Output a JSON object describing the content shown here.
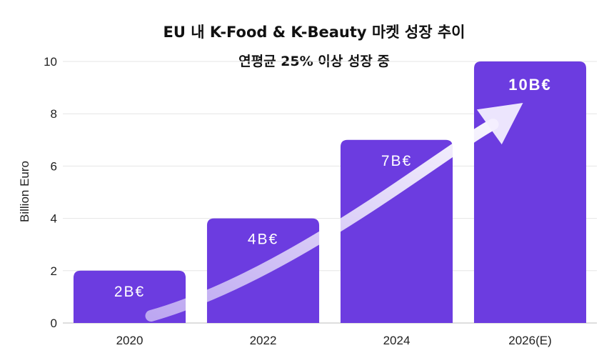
{
  "chart_data": {
    "type": "bar",
    "title": "EU 내 K-Food & K-Beauty 마켓 성장 추이",
    "subtitle": "연평균 25% 이상 성장 중",
    "xlabel": "",
    "ylabel": "Billion Euro",
    "categories": [
      "2020",
      "2022",
      "2024",
      "2026(E)"
    ],
    "values": [
      2,
      4,
      7,
      10
    ],
    "data_labels": [
      "2B€",
      "4B€",
      "7B€",
      "10B€"
    ],
    "ylim": [
      0,
      10
    ],
    "yticks": [
      0,
      2,
      4,
      6,
      8,
      10
    ],
    "ytick_labels": [
      "0",
      "2",
      "4",
      "6",
      "8",
      "10"
    ],
    "grid": true,
    "bar_color": "#6C3CE0",
    "annotation": "upward growth arrow"
  }
}
